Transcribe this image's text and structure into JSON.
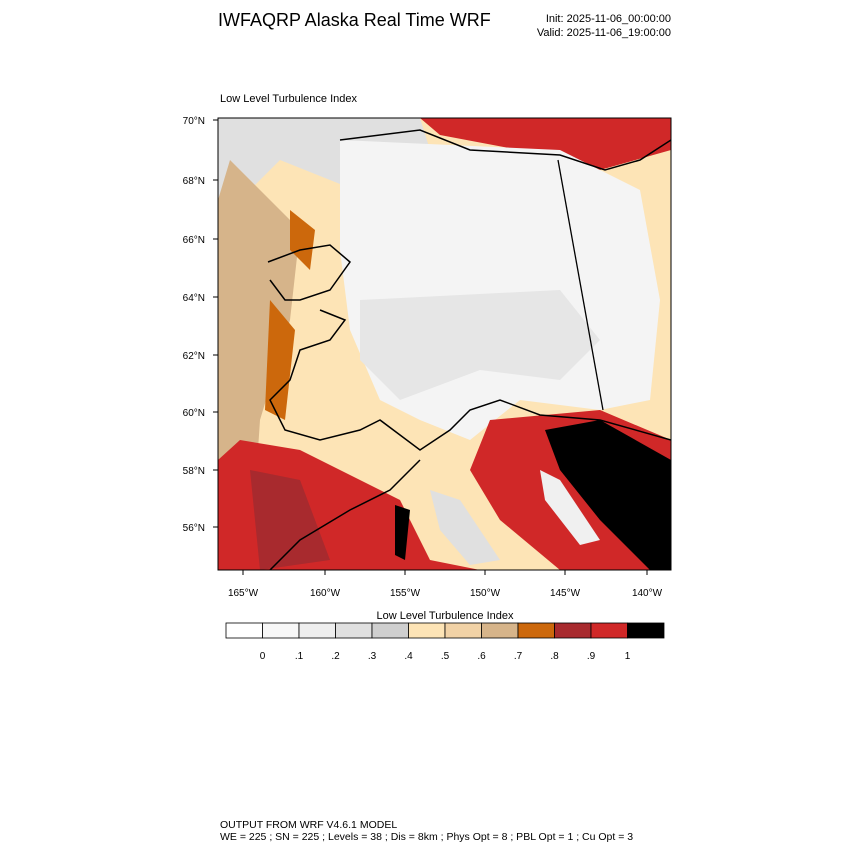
{
  "header": {
    "title": "IWFAQRP Alaska Real Time WRF",
    "init": "Init: 2025-11-06_00:00:00",
    "valid": "Valid: 2025-11-06_19:00:00"
  },
  "panel": {
    "title": "Low Level Turbulence Index",
    "lat_labels": [
      "70°N",
      "68°N",
      "66°N",
      "64°N",
      "62°N",
      "60°N",
      "58°N",
      "56°N"
    ],
    "lon_labels": [
      "165°W",
      "160°W",
      "155°W",
      "150°W",
      "145°W",
      "140°W"
    ]
  },
  "colorbar": {
    "title": "Low Level Turbulence Index",
    "labels": [
      "0",
      ".1",
      ".2",
      ".3",
      ".4",
      ".5",
      ".6",
      ".7",
      ".8",
      ".9",
      "1"
    ],
    "colors": [
      "#ffffff",
      "#f7f7f7",
      "#eeeeee",
      "#e0e0e0",
      "#cfcfcf",
      "#fde4b6",
      "#f1d2a6",
      "#d6b48a",
      "#cc680c",
      "#a82a2e",
      "#d02828",
      "#000000"
    ]
  },
  "footer": {
    "line1": "OUTPUT FROM WRF V4.6.1 MODEL",
    "line2": "WE = 225 ; SN = 225 ; Levels = 38 ; Dis = 8km ; Phys Opt = 8 ; PBL Opt = 1 ; Cu Opt = 3"
  }
}
